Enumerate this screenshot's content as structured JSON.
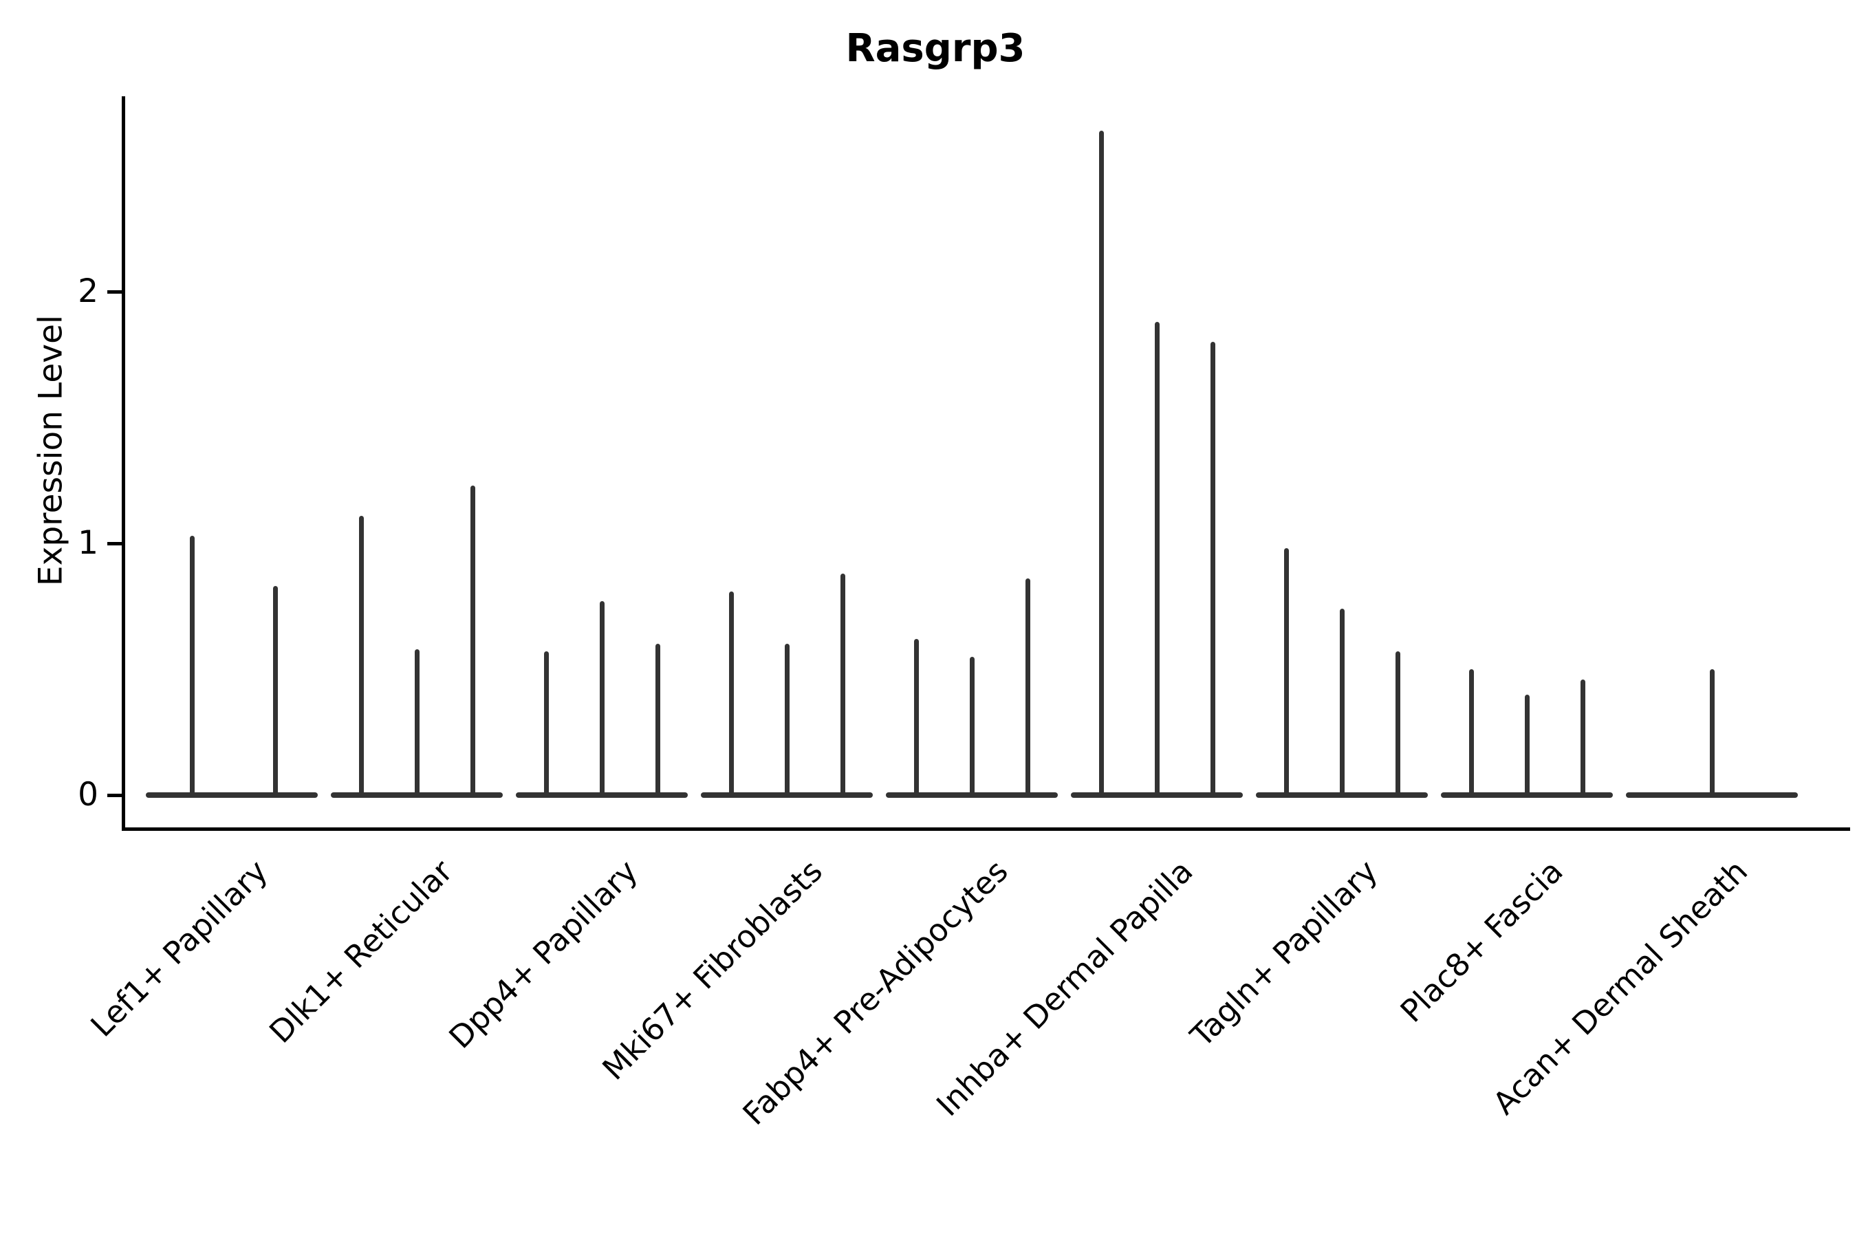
{
  "title": "Rasgrp3",
  "y_axis": {
    "label": "Expression Level",
    "ticks": [
      "0",
      "1",
      "2"
    ]
  },
  "x_axis": {
    "labels": [
      "Lef1+ Papillary",
      "Dlk1+ Reticular",
      "Dpp4+ Papillary",
      "Mki67+ Fibroblasts",
      "Fabp4+ Pre-Adipocytes",
      "Inhba+ Dermal Papilla",
      "Tagln+ Papillary",
      "Plac8+ Fascia",
      "Acan+ Dermal Sheath"
    ]
  },
  "colors": {
    "violin_stroke": "#333333",
    "axis": "#000000",
    "text": "#000000",
    "background": "#ffffff"
  },
  "chart_data": {
    "type": "violin",
    "title": "Rasgrp3",
    "xlabel": "",
    "ylabel": "Expression Level",
    "ylim": [
      0,
      2.78
    ],
    "yticks": [
      0,
      1,
      2
    ],
    "grid": false,
    "legend": "none",
    "note": "Needle-thin violins: wide flat base at y=0 with hairline spike rising to the max expression value; up to 3 violins per cell-type group",
    "groups": [
      {
        "label": "Lef1+ Papillary",
        "violins": [
          {
            "dx": -58,
            "max": 1.03
          },
          {
            "dx": 63,
            "max": 0.83
          }
        ]
      },
      {
        "label": "Dlk1+ Reticular",
        "violins": [
          {
            "dx": -81,
            "max": 1.11
          },
          {
            "dx": 0,
            "max": 0.58
          },
          {
            "dx": 81,
            "max": 1.23
          }
        ]
      },
      {
        "label": "Dpp4+ Papillary",
        "violins": [
          {
            "dx": -81,
            "max": 0.57
          },
          {
            "dx": 0,
            "max": 0.77
          },
          {
            "dx": 81,
            "max": 0.6
          }
        ]
      },
      {
        "label": "Mki67+ Fibroblasts",
        "violins": [
          {
            "dx": -81,
            "max": 0.81
          },
          {
            "dx": 0,
            "max": 0.6
          },
          {
            "dx": 81,
            "max": 0.88
          }
        ]
      },
      {
        "label": "Fabp4+ Pre-Adipocytes",
        "violins": [
          {
            "dx": -81,
            "max": 0.62
          },
          {
            "dx": 0,
            "max": 0.55
          },
          {
            "dx": 81,
            "max": 0.86
          }
        ]
      },
      {
        "label": "Inhba+ Dermal Papilla",
        "violins": [
          {
            "dx": -81,
            "max": 2.64
          },
          {
            "dx": 0,
            "max": 1.88
          },
          {
            "dx": 81,
            "max": 1.8
          }
        ]
      },
      {
        "label": "Tagln+ Papillary",
        "violins": [
          {
            "dx": -81,
            "max": 0.98
          },
          {
            "dx": 0,
            "max": 0.74
          },
          {
            "dx": 81,
            "max": 0.57
          }
        ]
      },
      {
        "label": "Plac8+ Fascia",
        "violins": [
          {
            "dx": -81,
            "max": 0.5
          },
          {
            "dx": 0,
            "max": 0.4
          },
          {
            "dx": 81,
            "max": 0.46
          }
        ]
      },
      {
        "label": "Acan+ Dermal Sheath",
        "violins": [
          {
            "dx": 0,
            "max": 0.5
          }
        ]
      }
    ]
  }
}
